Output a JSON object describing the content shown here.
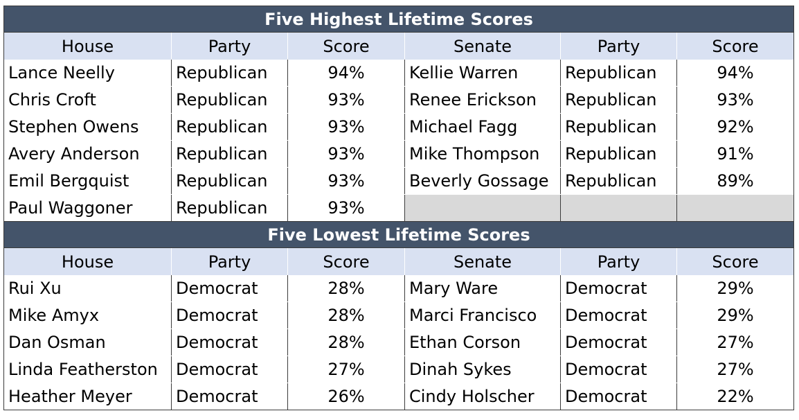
{
  "highest": {
    "title": "Five Highest Lifetime Scores",
    "headers": [
      "House",
      "Party",
      "Score",
      "Senate",
      "Party",
      "Score"
    ],
    "rows": [
      [
        "Lance Neelly",
        "Republican",
        "94%",
        "Kellie Warren",
        "Republican",
        "94%"
      ],
      [
        "Chris Croft",
        "Republican",
        "93%",
        "Renee Erickson",
        "Republican",
        "93%"
      ],
      [
        "Stephen Owens",
        "Republican",
        "93%",
        "Michael Fagg",
        "Republican",
        "92%"
      ],
      [
        "Avery Anderson",
        "Republican",
        "93%",
        "Mike Thompson",
        "Republican",
        "91%"
      ],
      [
        "Emil Bergquist",
        "Republican",
        "93%",
        "Beverly Gossage",
        "Republican",
        "89%"
      ],
      [
        "Paul Waggoner",
        "Republican",
        "93%",
        "",
        "",
        ""
      ]
    ]
  },
  "lowest": {
    "title": "Five Lowest Lifetime Scores",
    "headers": [
      "House",
      "Party",
      "Score",
      "Senate",
      "Party",
      "Score"
    ],
    "rows": [
      [
        "Rui Xu",
        "Democrat",
        "28%",
        "Mary Ware",
        "Democrat",
        "29%"
      ],
      [
        "Mike Amyx",
        "Democrat",
        "28%",
        "Marci Francisco",
        "Democrat",
        "29%"
      ],
      [
        "Dan Osman",
        "Democrat",
        "28%",
        "Ethan Corson",
        "Democrat",
        "27%"
      ],
      [
        "Linda Featherston",
        "Democrat",
        "27%",
        "Dinah Sykes",
        "Democrat",
        "27%"
      ],
      [
        "Heather Meyer",
        "Democrat",
        "26%",
        "Cindy Holscher",
        "Democrat",
        "22%"
      ]
    ]
  }
}
